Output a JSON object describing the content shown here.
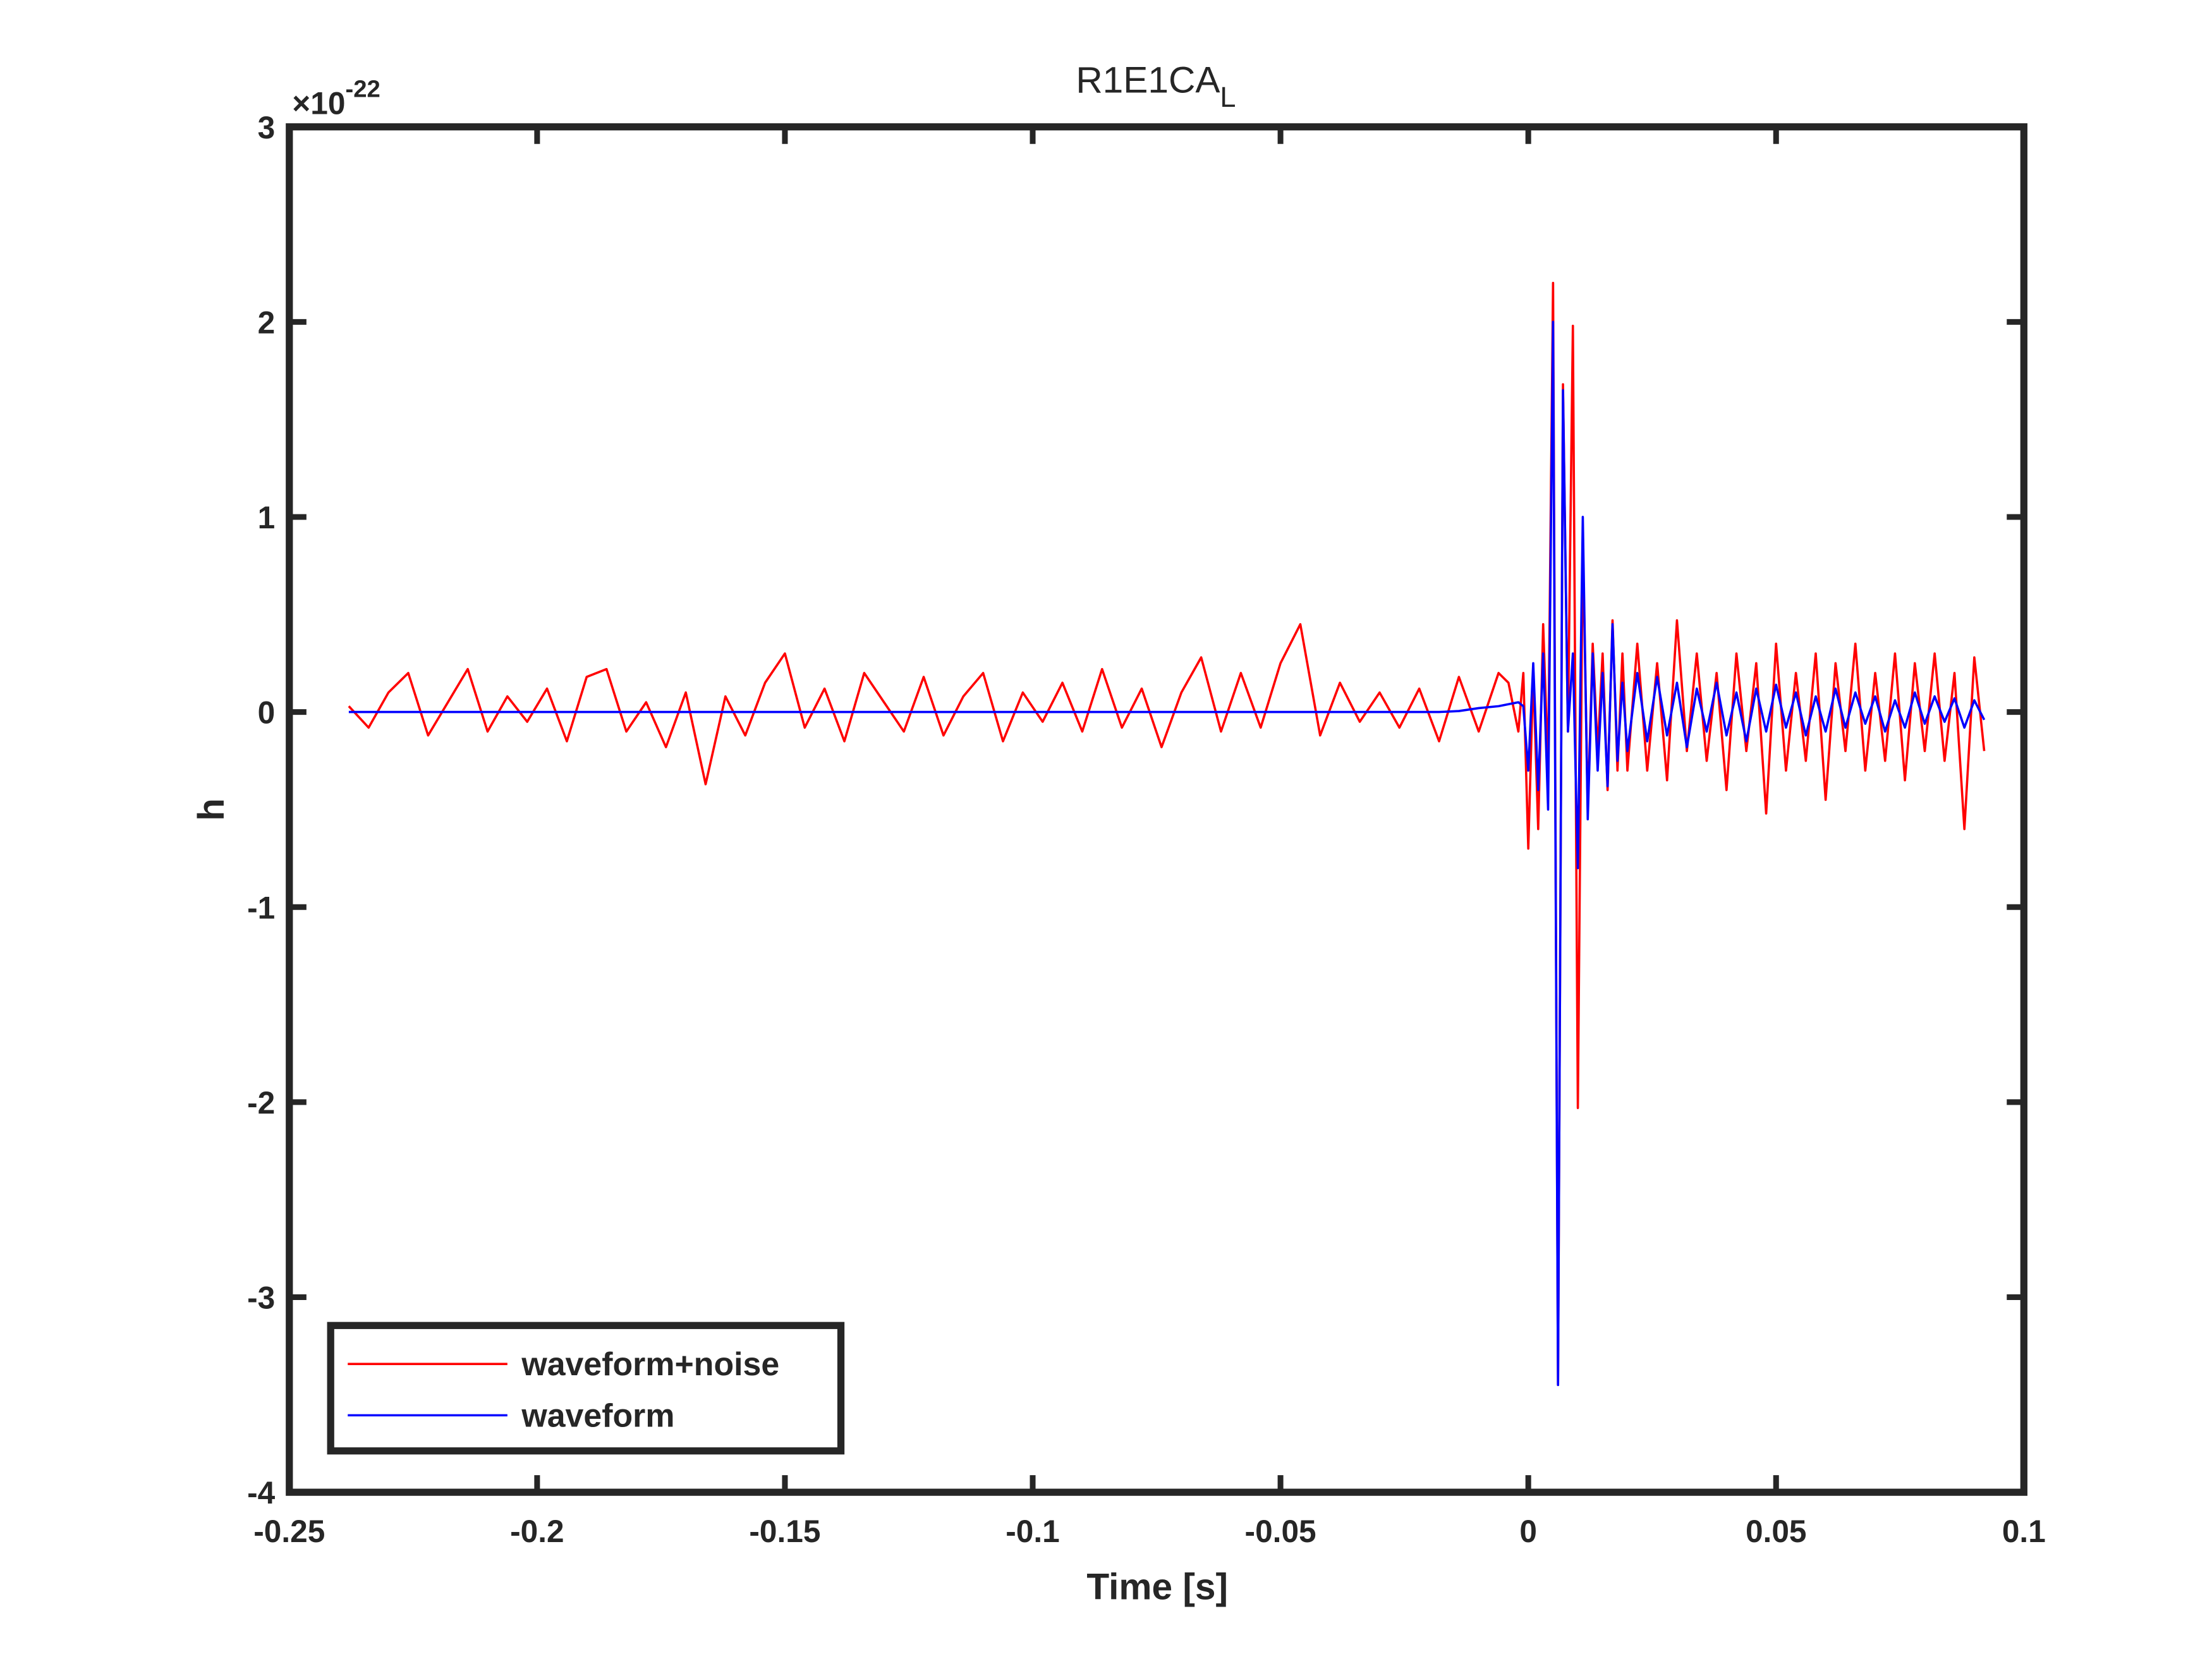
{
  "chart_data": {
    "type": "line",
    "title": "R1E1CA",
    "title_subscript": "L",
    "xlabel": "Time [s]",
    "ylabel": "h",
    "y_multiplier": "×10",
    "y_multiplier_exponent": "-22",
    "xlim": [
      -0.25,
      0.1
    ],
    "xticks": [
      -0.25,
      -0.2,
      -0.15,
      -0.1,
      -0.05,
      0,
      0.05,
      0.1
    ],
    "ylim": [
      -4,
      3
    ],
    "yticks": [
      -4,
      -3,
      -2,
      -1,
      0,
      1,
      2,
      3
    ],
    "legend": "lower left",
    "grid": false,
    "x": [
      -0.238,
      -0.234,
      -0.23,
      -0.226,
      -0.222,
      -0.218,
      -0.214,
      -0.21,
      -0.206,
      -0.202,
      -0.198,
      -0.194,
      -0.19,
      -0.186,
      -0.182,
      -0.178,
      -0.174,
      -0.17,
      -0.166,
      -0.162,
      -0.158,
      -0.154,
      -0.15,
      -0.146,
      -0.142,
      -0.138,
      -0.134,
      -0.13,
      -0.126,
      -0.122,
      -0.118,
      -0.114,
      -0.11,
      -0.106,
      -0.102,
      -0.098,
      -0.094,
      -0.09,
      -0.086,
      -0.082,
      -0.078,
      -0.074,
      -0.07,
      -0.066,
      -0.062,
      -0.058,
      -0.054,
      -0.05,
      -0.046,
      -0.042,
      -0.038,
      -0.034,
      -0.03,
      -0.026,
      -0.022,
      -0.018,
      -0.014,
      -0.01,
      -0.006,
      -0.004,
      -0.002,
      -0.001,
      0,
      0.001,
      0.002,
      0.003,
      0.004,
      0.005,
      0.006,
      0.007,
      0.008,
      0.009,
      0.01,
      0.011,
      0.012,
      0.013,
      0.014,
      0.015,
      0.016,
      0.017,
      0.018,
      0.019,
      0.02,
      0.022,
      0.024,
      0.026,
      0.028,
      0.03,
      0.032,
      0.034,
      0.036,
      0.038,
      0.04,
      0.042,
      0.044,
      0.046,
      0.048,
      0.05,
      0.052,
      0.054,
      0.056,
      0.058,
      0.06,
      0.062,
      0.064,
      0.066,
      0.068,
      0.07,
      0.072,
      0.074,
      0.076,
      0.078,
      0.08,
      0.082,
      0.084,
      0.086,
      0.088,
      0.09,
      0.092
    ],
    "series": [
      {
        "name": "waveform+noise",
        "color": "#ff0000",
        "values": [
          0.03,
          -0.08,
          0.1,
          0.2,
          -0.12,
          0.05,
          0.22,
          -0.1,
          0.08,
          -0.05,
          0.12,
          -0.15,
          0.18,
          0.22,
          -0.1,
          0.05,
          -0.18,
          0.1,
          -0.37,
          0.08,
          -0.12,
          0.15,
          0.3,
          -0.08,
          0.12,
          -0.15,
          0.2,
          0.05,
          -0.1,
          0.18,
          -0.12,
          0.08,
          0.2,
          -0.15,
          0.1,
          -0.05,
          0.15,
          -0.1,
          0.22,
          -0.08,
          0.12,
          -0.18,
          0.1,
          0.28,
          -0.1,
          0.2,
          -0.08,
          0.25,
          0.45,
          -0.12,
          0.15,
          -0.05,
          0.1,
          -0.08,
          0.12,
          -0.15,
          0.18,
          -0.1,
          0.2,
          0.15,
          -0.1,
          0.2,
          -0.7,
          0.2,
          -0.6,
          0.45,
          -0.3,
          2.2,
          -3.45,
          1.68,
          -0.1,
          1.98,
          -2.03,
          0.9,
          -0.5,
          0.35,
          -0.2,
          0.3,
          -0.4,
          0.47,
          -0.3,
          0.3,
          -0.3,
          0.35,
          -0.3,
          0.25,
          -0.35,
          0.47,
          -0.2,
          0.3,
          -0.25,
          0.2,
          -0.4,
          0.3,
          -0.2,
          0.25,
          -0.52,
          0.35,
          -0.3,
          0.2,
          -0.25,
          0.3,
          -0.45,
          0.25,
          -0.2,
          0.35,
          -0.3,
          0.2,
          -0.25,
          0.3,
          -0.35,
          0.25,
          -0.2,
          0.3,
          -0.25,
          0.2,
          -0.6,
          0.28,
          -0.2
        ]
      },
      {
        "name": "waveform",
        "color": "#0000ff",
        "values": [
          0,
          0,
          0,
          0,
          0,
          0,
          0,
          0,
          0,
          0,
          0,
          0,
          0,
          0,
          0,
          0,
          0,
          0,
          0,
          0,
          0,
          0,
          0,
          0,
          0,
          0,
          0,
          0,
          0,
          0,
          0,
          0,
          0,
          0,
          0,
          0,
          0,
          0,
          0,
          0,
          0,
          0,
          0,
          0,
          0,
          0,
          0,
          0,
          0,
          0,
          0,
          0,
          0,
          0,
          0,
          0,
          0.005,
          0.02,
          0.03,
          0.04,
          0.05,
          0.03,
          -0.3,
          0.25,
          -0.4,
          0.3,
          -0.5,
          2.0,
          -3.45,
          1.65,
          -0.1,
          0.3,
          -0.8,
          1.0,
          -0.55,
          0.3,
          -0.3,
          0.2,
          -0.38,
          0.45,
          -0.25,
          0.15,
          -0.2,
          0.2,
          -0.15,
          0.18,
          -0.12,
          0.15,
          -0.18,
          0.12,
          -0.1,
          0.15,
          -0.12,
          0.1,
          -0.15,
          0.12,
          -0.1,
          0.14,
          -0.08,
          0.1,
          -0.12,
          0.08,
          -0.1,
          0.12,
          -0.08,
          0.1,
          -0.06,
          0.08,
          -0.1,
          0.06,
          -0.08,
          0.1,
          -0.06,
          0.08,
          -0.05,
          0.07,
          -0.08,
          0.06,
          -0.04
        ]
      }
    ]
  }
}
